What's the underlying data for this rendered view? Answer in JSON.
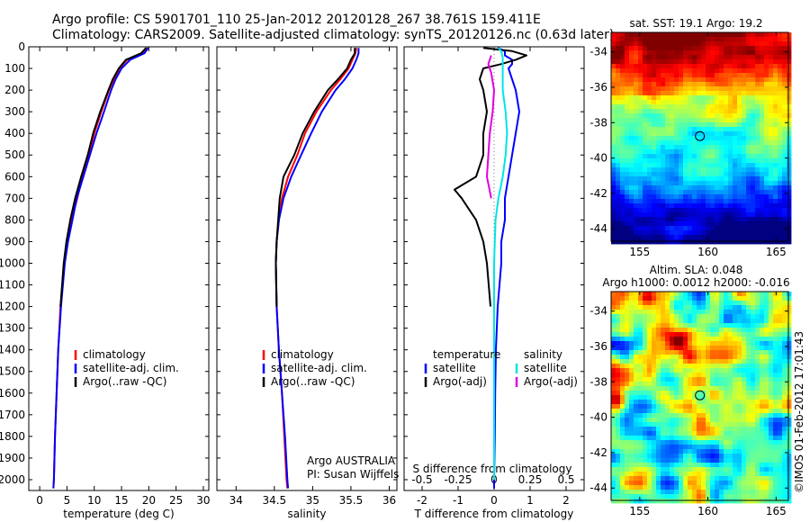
{
  "header": {
    "line1": "Argo profile: CS 5901701_110 25-Jan-2012 20120128_267 38.761S 159.411E",
    "line2": "Climatology: CARS2009. Satellite-adjusted climatology: synTS_20120126.nc (0.63d later)"
  },
  "colors": {
    "climatology": "#ff0000",
    "satellite": "#0000ff",
    "argo": "#000000",
    "salinity_satellite": "#00e5e5",
    "salinity_argo": "#e000e0"
  },
  "chart_data": [
    {
      "id": "temperature",
      "type": "line",
      "xlabel": "temperature (deg C)",
      "ylabel": "depth",
      "xlim": [
        -2,
        31
      ],
      "ylim": [
        2050,
        0
      ],
      "xticks": [
        "0",
        "5",
        "10",
        "15",
        "20",
        "25",
        "30"
      ],
      "xtick_values": [
        0,
        5,
        10,
        15,
        20,
        25,
        30
      ],
      "yticks": [
        "0",
        "100",
        "200",
        "300",
        "400",
        "500",
        "600",
        "700",
        "800",
        "900",
        "1000",
        "1100",
        "1200",
        "1300",
        "1400",
        "1500",
        "1600",
        "1700",
        "1800",
        "1900",
        "2000"
      ],
      "ytick_values": [
        0,
        100,
        200,
        300,
        400,
        500,
        600,
        700,
        800,
        900,
        1000,
        1100,
        1200,
        1300,
        1400,
        1500,
        1600,
        1700,
        1800,
        1900,
        2000
      ],
      "legend": [
        "climatology",
        "satellite-adj. clim.",
        "Argo(..raw -QC)"
      ],
      "legend_position": "bottom-center",
      "series": [
        {
          "name": "climatology",
          "color": "#ff0000",
          "depth": [
            5,
            30,
            60,
            100,
            150,
            200,
            300,
            400,
            500,
            600,
            700,
            800,
            900,
            1000,
            1200,
            1400,
            1600,
            1800,
            2000,
            2040
          ],
          "values": [
            19.8,
            18.8,
            16.0,
            14.6,
            13.6,
            12.7,
            11.3,
            10.0,
            9.0,
            7.8,
            6.9,
            5.8,
            5.0,
            4.5,
            3.8,
            3.4,
            3.1,
            2.8,
            2.6,
            2.5
          ]
        },
        {
          "name": "satellite-adj. clim.",
          "color": "#0000ff",
          "depth": [
            5,
            30,
            60,
            100,
            150,
            200,
            300,
            400,
            500,
            600,
            700,
            800,
            900,
            1000,
            1200,
            1400,
            1600,
            1800,
            2000,
            2040
          ],
          "values": [
            19.9,
            19.2,
            16.6,
            15.0,
            13.9,
            13.1,
            11.8,
            10.4,
            9.2,
            8.0,
            6.8,
            6.0,
            5.2,
            4.6,
            3.9,
            3.4,
            3.1,
            2.8,
            2.6,
            2.5
          ]
        },
        {
          "name": "Argo(..raw -QC)",
          "color": "#000000",
          "depth": [
            5,
            30,
            60,
            100,
            150,
            200,
            300,
            400,
            500,
            600,
            700,
            800,
            900,
            1000,
            1200
          ],
          "values": [
            19.5,
            18.6,
            15.8,
            14.5,
            13.4,
            12.6,
            11.1,
            9.8,
            8.8,
            7.6,
            6.5,
            5.6,
            4.9,
            4.4,
            3.8
          ]
        }
      ]
    },
    {
      "id": "salinity",
      "type": "line",
      "xlabel": "salinity",
      "xlim": [
        33.75,
        36.1
      ],
      "ylim": [
        2050,
        0
      ],
      "xticks": [
        "34",
        "34.5",
        "35",
        "35.5",
        "36"
      ],
      "xtick_values": [
        34,
        34.5,
        35,
        35.5,
        36
      ],
      "legend": [
        "climatology",
        "satellite-adj. clim.",
        "Argo(..raw -QC)"
      ],
      "legend_position": "bottom-center",
      "annotation": [
        "Argo AUSTRALIA",
        "PI: Susan Wijffels"
      ],
      "series": [
        {
          "name": "climatology",
          "color": "#ff0000",
          "depth": [
            5,
            30,
            60,
            100,
            150,
            200,
            300,
            400,
            500,
            600,
            700,
            800,
            900,
            1000,
            1200,
            1400,
            1600,
            1800,
            2000,
            2040
          ],
          "values": [
            35.57,
            35.56,
            35.52,
            35.47,
            35.36,
            35.24,
            35.05,
            34.9,
            34.8,
            34.68,
            34.6,
            34.56,
            34.53,
            34.52,
            34.53,
            34.56,
            34.6,
            34.63,
            34.66,
            34.67
          ]
        },
        {
          "name": "satellite-adj. clim.",
          "color": "#0000ff",
          "depth": [
            5,
            30,
            60,
            100,
            150,
            200,
            300,
            400,
            500,
            600,
            700,
            800,
            900,
            1000,
            1200,
            1400,
            1600,
            1800,
            2000,
            2040
          ],
          "values": [
            35.6,
            35.6,
            35.57,
            35.52,
            35.42,
            35.3,
            35.12,
            34.98,
            34.85,
            34.72,
            34.62,
            34.56,
            34.53,
            34.52,
            34.53,
            34.56,
            34.6,
            34.64,
            34.67,
            34.68
          ]
        },
        {
          "name": "Argo(..raw -QC)",
          "color": "#000000",
          "depth": [
            5,
            30,
            60,
            100,
            150,
            200,
            300,
            400,
            500,
            600,
            700,
            800,
            900,
            1000,
            1200
          ],
          "values": [
            35.55,
            35.55,
            35.5,
            35.45,
            35.33,
            35.2,
            35.02,
            34.87,
            34.76,
            34.62,
            34.57,
            34.55,
            34.53,
            34.52,
            34.53
          ]
        }
      ]
    },
    {
      "id": "difference",
      "type": "line",
      "xlabel": "T difference from climatology",
      "top_axis_label": "S difference from climatology",
      "xlim": [
        -2.5,
        2.5
      ],
      "ylim": [
        2050,
        0
      ],
      "xticks": [
        "-2",
        "-1",
        "0",
        "1",
        "2"
      ],
      "xtick_values": [
        -2,
        -1,
        0,
        1,
        2
      ],
      "s_ticks": [
        "-0.5",
        "-0.25",
        "0",
        "0.25",
        "0.5"
      ],
      "s_tick_values": [
        -0.5,
        -0.25,
        0,
        0.25,
        0.5
      ],
      "legend_headers": [
        "temperature",
        "salinity"
      ],
      "legend": [
        "satellite",
        "Argo(-adj)",
        "satellite",
        "Argo(-adj)"
      ],
      "legend_position": "bottom-center",
      "series": [
        {
          "name": "T satellite",
          "color": "#0000ff",
          "depth": [
            5,
            20,
            40,
            60,
            80,
            100,
            150,
            200,
            300,
            400,
            500,
            600,
            700,
            800,
            900,
            1000,
            1200,
            1400,
            1600,
            1800,
            2000,
            2040
          ],
          "values": [
            0.1,
            0.3,
            0.3,
            0.5,
            0.5,
            0.4,
            0.5,
            0.6,
            0.7,
            0.6,
            0.5,
            0.4,
            0.3,
            0.3,
            0.2,
            0.2,
            0.1,
            0.05,
            0.03,
            0.02,
            0.0,
            0.0
          ]
        },
        {
          "name": "T Argo(-adj)",
          "color": "#000000",
          "depth": [
            5,
            20,
            40,
            60,
            80,
            100,
            150,
            200,
            300,
            400,
            500,
            600,
            640,
            660,
            700,
            800,
            900,
            1000,
            1100,
            1200
          ],
          "values": [
            -0.3,
            0.5,
            0.9,
            0.6,
            0.2,
            -0.3,
            -0.4,
            -0.3,
            -0.2,
            -0.3,
            -0.3,
            -0.5,
            -0.9,
            -1.1,
            -0.9,
            -0.5,
            -0.3,
            -0.2,
            -0.15,
            -0.1
          ]
        },
        {
          "name": "S satellite",
          "color": "#00e5e5",
          "depth": [
            5,
            20,
            50,
            100,
            200,
            300,
            400,
            500,
            600,
            700,
            800,
            1000,
            1200,
            1400,
            1600,
            1800,
            2000
          ],
          "values": [
            0.03,
            0.05,
            0.06,
            0.06,
            0.06,
            0.08,
            0.09,
            0.08,
            0.06,
            0.03,
            0.01,
            0.0,
            0.0,
            0.0,
            0.0,
            0.0,
            0.0
          ]
        },
        {
          "name": "S Argo(-adj)",
          "color": "#e000e0",
          "depth": [
            40,
            80,
            120,
            200,
            300,
            400,
            500,
            600,
            700
          ],
          "values": [
            -0.02,
            -0.04,
            -0.02,
            0.0,
            -0.01,
            -0.03,
            -0.04,
            -0.05,
            -0.02
          ]
        }
      ]
    }
  ],
  "maps": [
    {
      "id": "sst",
      "title_lines": [
        "sat. SST: 19.1  Argo: 19.2"
      ],
      "xticks": [
        "155",
        "160",
        "165"
      ],
      "xtick_values": [
        155,
        160,
        165
      ],
      "yticks": [
        "-34",
        "-36",
        "-38",
        "-40",
        "-42",
        "-44"
      ],
      "ytick_values": [
        -34,
        -36,
        -38,
        -40,
        -42,
        -44
      ],
      "lon_range": [
        152.9,
        165.9
      ],
      "lat_range": [
        -44.7,
        -32.9
      ],
      "marker_lon": 159.41,
      "marker_lat": -38.76
    },
    {
      "id": "sla",
      "title_lines": [
        "Altim. SLA: 0.048",
        "Argo h1000: 0.0012 h2000: -0.016"
      ],
      "xticks": [
        "155",
        "160",
        "165"
      ],
      "xtick_values": [
        155,
        160,
        165
      ],
      "yticks": [
        "-34",
        "-36",
        "-38",
        "-40",
        "-42",
        "-44"
      ],
      "ytick_values": [
        -34,
        -36,
        -38,
        -40,
        -42,
        -44
      ],
      "lon_range": [
        152.9,
        165.9
      ],
      "lat_range": [
        -44.7,
        -32.9
      ],
      "marker_lon": 159.41,
      "marker_lat": -38.76
    }
  ],
  "credit": "©IMOS 01-Feb-2012 17:01:43"
}
